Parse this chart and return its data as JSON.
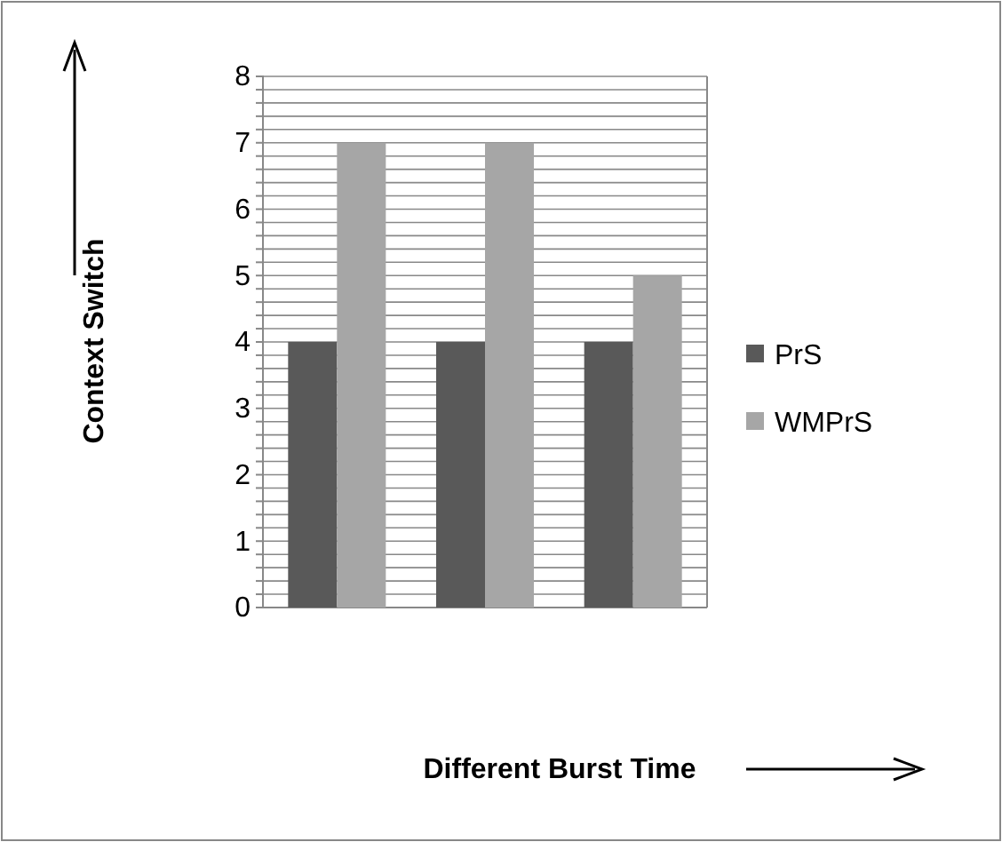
{
  "chart_data": {
    "type": "bar",
    "xlabel": "Different Burst Time",
    "ylabel": "Context  Switch",
    "categories": [
      null,
      null,
      null
    ],
    "series": [
      {
        "name": "PrS",
        "color": "#595959",
        "values": [
          4,
          4,
          4
        ]
      },
      {
        "name": "WMPrS",
        "color": "#a6a6a6",
        "values": [
          7,
          7,
          5
        ]
      }
    ],
    "ylim": [
      0,
      8
    ],
    "yticks": [
      0,
      {
        "value": 0.2,
        "label": null
      },
      {
        "value": 0.4,
        "label": null
      },
      {
        "value": 0.6,
        "label": null
      },
      {
        "value": 0.8,
        "label": null
      },
      1,
      {
        "value": 1.2,
        "label": null
      },
      {
        "value": 1.4,
        "label": null
      },
      {
        "value": 1.6,
        "label": null
      },
      {
        "value": 1.8,
        "label": null
      },
      2,
      {
        "value": 2.2,
        "label": null
      },
      {
        "value": 2.4,
        "label": null
      },
      {
        "value": 2.6,
        "label": null
      },
      {
        "value": 2.8,
        "label": null
      },
      3,
      {
        "value": 3.2,
        "label": null
      },
      {
        "value": 3.4,
        "label": null
      },
      {
        "value": 3.6,
        "label": null
      },
      {
        "value": 3.8,
        "label": null
      },
      4,
      {
        "value": 4.2,
        "label": null
      },
      {
        "value": 4.4,
        "label": null
      },
      {
        "value": 4.6,
        "label": null
      },
      {
        "value": 4.8,
        "label": null
      },
      5,
      {
        "value": 5.2,
        "label": null
      },
      {
        "value": 5.4,
        "label": null
      },
      {
        "value": 5.6,
        "label": null
      },
      {
        "value": 5.8,
        "label": null
      },
      6,
      {
        "value": 6.2,
        "label": null
      },
      {
        "value": 6.4,
        "label": null
      },
      {
        "value": 6.6,
        "label": null
      },
      {
        "value": 6.8,
        "label": null
      },
      7,
      {
        "value": 7.2,
        "label": null
      },
      {
        "value": 7.4,
        "label": null
      },
      {
        "value": 7.6,
        "label": null
      },
      {
        "value": 7.8,
        "label": null
      },
      8
    ],
    "grid": "y",
    "legend": "right"
  }
}
